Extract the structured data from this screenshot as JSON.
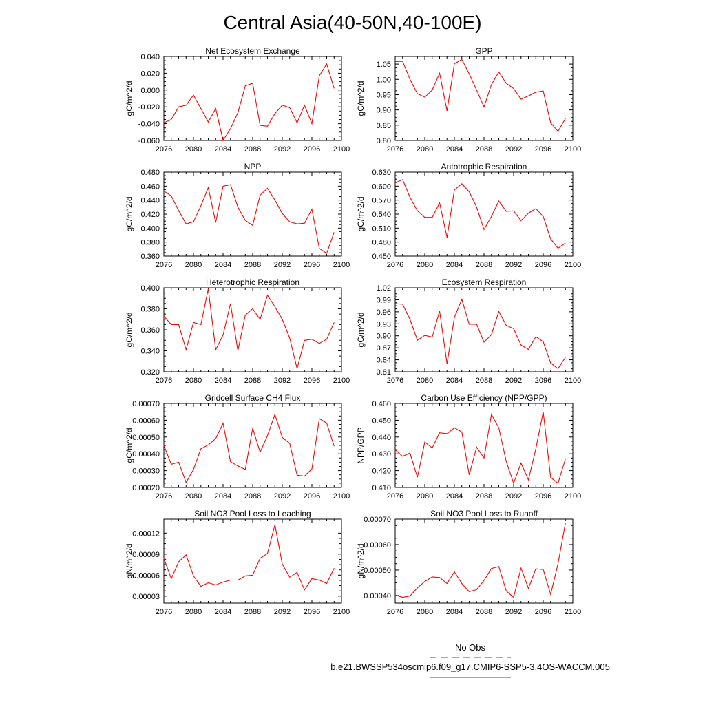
{
  "title": "Central Asia(40-50N,40-100E)",
  "legend": {
    "items": [
      {
        "label": "No Obs",
        "color": "#4444bb",
        "style": "dashed"
      },
      {
        "label": "b.e21.BWSSP534oscmip6.f09_g17.CMIP6-SSP5-3.4OS-WACCM.005",
        "color": "#ff0000",
        "style": "solid"
      }
    ]
  },
  "chart_data": [
    {
      "type": "line",
      "title": "Net Ecosystem Exchange",
      "ylabel": "gC/m^2/d",
      "xlim": [
        2076,
        2100
      ],
      "ylim": [
        -0.06,
        0.04
      ],
      "xticks": [
        2076,
        2080,
        2084,
        2088,
        2092,
        2096,
        2100
      ],
      "yticks": [
        -0.06,
        -0.04,
        -0.02,
        0.0,
        0.02,
        0.04
      ],
      "ytick_labels": [
        "-0.060",
        "-0.040",
        "-0.020",
        "0.000",
        "0.020",
        "0.040"
      ],
      "series": [
        {
          "name": "b.e21.BWSSP534oscmip6.f09_g17.CMIP6-SSP5-3.4OS-WACCM.005",
          "color": "#ff0000",
          "x": [
            2076,
            2077,
            2078,
            2079,
            2080,
            2081,
            2082,
            2083,
            2084,
            2085,
            2086,
            2087,
            2088,
            2089,
            2090,
            2091,
            2092,
            2093,
            2094,
            2095,
            2096,
            2097,
            2098,
            2099
          ],
          "values": [
            -0.039,
            -0.035,
            -0.02,
            -0.018,
            -0.006,
            -0.022,
            -0.038,
            -0.022,
            -0.06,
            -0.046,
            -0.027,
            0.005,
            0.008,
            -0.042,
            -0.043,
            -0.028,
            -0.018,
            -0.021,
            -0.039,
            -0.018,
            -0.04,
            0.017,
            0.031,
            0.002
          ]
        }
      ]
    },
    {
      "type": "line",
      "title": "GPP",
      "ylabel": "gC/m^2/d",
      "xlim": [
        2076,
        2100
      ],
      "ylim": [
        0.8,
        1.075
      ],
      "xticks": [
        2076,
        2080,
        2084,
        2088,
        2092,
        2096,
        2100
      ],
      "yticks": [
        0.8,
        0.85,
        0.9,
        0.95,
        1.0,
        1.05
      ],
      "ytick_labels": [
        "0.80",
        "0.85",
        "0.90",
        "0.95",
        "1.00",
        "1.05"
      ],
      "series": [
        {
          "name": "b.e21.BWSSP534oscmip6.f09_g17.CMIP6-SSP5-3.4OS-WACCM.005",
          "color": "#ff0000",
          "x": [
            2076,
            2077,
            2078,
            2079,
            2080,
            2081,
            2082,
            2083,
            2084,
            2085,
            2086,
            2087,
            2088,
            2089,
            2090,
            2091,
            2092,
            2093,
            2094,
            2095,
            2096,
            2097,
            2098,
            2099
          ],
          "values": [
            1.058,
            1.059,
            1.0,
            0.953,
            0.942,
            0.965,
            1.02,
            0.897,
            1.051,
            1.065,
            1.018,
            0.965,
            0.91,
            0.983,
            1.024,
            0.987,
            0.97,
            0.935,
            0.946,
            0.958,
            0.962,
            0.858,
            0.83,
            0.872
          ]
        }
      ]
    },
    {
      "type": "line",
      "title": "NPP",
      "ylabel": "gC/m^2/d",
      "xlim": [
        2076,
        2100
      ],
      "ylim": [
        0.36,
        0.48
      ],
      "xticks": [
        2076,
        2080,
        2084,
        2088,
        2092,
        2096,
        2100
      ],
      "yticks": [
        0.36,
        0.38,
        0.4,
        0.42,
        0.44,
        0.46,
        0.48
      ],
      "ytick_labels": [
        "0.360",
        "0.380",
        "0.400",
        "0.420",
        "0.440",
        "0.460",
        "0.480"
      ],
      "series": [
        {
          "name": "b.e21.BWSSP534oscmip6.f09_g17.CMIP6-SSP5-3.4OS-WACCM.005",
          "color": "#ff0000",
          "x": [
            2076,
            2077,
            2078,
            2079,
            2080,
            2081,
            2082,
            2083,
            2084,
            2085,
            2086,
            2087,
            2088,
            2089,
            2090,
            2091,
            2092,
            2093,
            2094,
            2095,
            2096,
            2097,
            2098,
            2099
          ],
          "values": [
            0.453,
            0.446,
            0.425,
            0.406,
            0.409,
            0.432,
            0.458,
            0.408,
            0.46,
            0.462,
            0.43,
            0.411,
            0.404,
            0.447,
            0.457,
            0.44,
            0.421,
            0.409,
            0.406,
            0.407,
            0.427,
            0.371,
            0.364,
            0.394
          ]
        }
      ]
    },
    {
      "type": "line",
      "title": "Autotrophic Respiration",
      "ylabel": "gC/m^2/d",
      "xlim": [
        2076,
        2100
      ],
      "ylim": [
        0.45,
        0.63
      ],
      "xticks": [
        2076,
        2080,
        2084,
        2088,
        2092,
        2096,
        2100
      ],
      "yticks": [
        0.45,
        0.48,
        0.51,
        0.54,
        0.57,
        0.6,
        0.63
      ],
      "ytick_labels": [
        "0.450",
        "0.480",
        "0.510",
        "0.540",
        "0.570",
        "0.600",
        "0.630"
      ],
      "series": [
        {
          "name": "b.e21.BWSSP534oscmip6.f09_g17.CMIP6-SSP5-3.4OS-WACCM.005",
          "color": "#ff0000",
          "x": [
            2076,
            2077,
            2078,
            2079,
            2080,
            2081,
            2082,
            2083,
            2084,
            2085,
            2086,
            2087,
            2088,
            2089,
            2090,
            2091,
            2092,
            2093,
            2094,
            2095,
            2096,
            2097,
            2098,
            2099
          ],
          "values": [
            0.607,
            0.614,
            0.576,
            0.547,
            0.533,
            0.533,
            0.564,
            0.49,
            0.592,
            0.605,
            0.588,
            0.555,
            0.507,
            0.535,
            0.568,
            0.546,
            0.547,
            0.526,
            0.542,
            0.552,
            0.535,
            0.487,
            0.467,
            0.478
          ]
        }
      ]
    },
    {
      "type": "line",
      "title": "Heterotrophic Respiration",
      "ylabel": "gC/m^2/d",
      "xlim": [
        2076,
        2100
      ],
      "ylim": [
        0.32,
        0.4
      ],
      "xticks": [
        2076,
        2080,
        2084,
        2088,
        2092,
        2096,
        2100
      ],
      "yticks": [
        0.32,
        0.34,
        0.36,
        0.38,
        0.4
      ],
      "ytick_labels": [
        "0.320",
        "0.340",
        "0.360",
        "0.380",
        "0.400"
      ],
      "series": [
        {
          "name": "b.e21.BWSSP534oscmip6.f09_g17.CMIP6-SSP5-3.4OS-WACCM.005",
          "color": "#ff0000",
          "x": [
            2076,
            2077,
            2078,
            2079,
            2080,
            2081,
            2082,
            2083,
            2084,
            2085,
            2086,
            2087,
            2088,
            2089,
            2090,
            2091,
            2092,
            2093,
            2094,
            2095,
            2096,
            2097,
            2098,
            2099
          ],
          "values": [
            0.373,
            0.365,
            0.365,
            0.341,
            0.367,
            0.365,
            0.399,
            0.341,
            0.355,
            0.385,
            0.34,
            0.374,
            0.38,
            0.37,
            0.393,
            0.382,
            0.37,
            0.352,
            0.323,
            0.35,
            0.351,
            0.347,
            0.351,
            0.367
          ]
        }
      ]
    },
    {
      "type": "line",
      "title": "Ecosystem Respiration",
      "ylabel": "gC/m^2/d",
      "xlim": [
        2076,
        2100
      ],
      "ylim": [
        0.81,
        1.02
      ],
      "xticks": [
        2076,
        2080,
        2084,
        2088,
        2092,
        2096,
        2100
      ],
      "yticks": [
        0.81,
        0.84,
        0.87,
        0.9,
        0.93,
        0.96,
        0.99,
        1.02
      ],
      "ytick_labels": [
        "0.81",
        "0.84",
        "0.87",
        "0.90",
        "0.93",
        "0.96",
        "0.99",
        "1.02"
      ],
      "series": [
        {
          "name": "b.e21.BWSSP534oscmip6.f09_g17.CMIP6-SSP5-3.4OS-WACCM.005",
          "color": "#ff0000",
          "x": [
            2076,
            2077,
            2078,
            2079,
            2080,
            2081,
            2082,
            2083,
            2084,
            2085,
            2086,
            2087,
            2088,
            2089,
            2090,
            2091,
            2092,
            2093,
            2094,
            2095,
            2096,
            2097,
            2098,
            2099
          ],
          "values": [
            0.98,
            0.979,
            0.941,
            0.889,
            0.901,
            0.897,
            0.962,
            0.83,
            0.946,
            0.991,
            0.929,
            0.929,
            0.884,
            0.903,
            0.961,
            0.926,
            0.918,
            0.877,
            0.866,
            0.898,
            0.885,
            0.832,
            0.818,
            0.846
          ]
        }
      ]
    },
    {
      "type": "line",
      "title": "Gridcell Surface CH4 Flux",
      "ylabel": "gC/m^2/d",
      "xlim": [
        2076,
        2100
      ],
      "ylim": [
        0.0002,
        0.0007
      ],
      "xticks": [
        2076,
        2080,
        2084,
        2088,
        2092,
        2096,
        2100
      ],
      "yticks": [
        0.0002,
        0.0003,
        0.0004,
        0.0005,
        0.0006,
        0.0007
      ],
      "ytick_labels": [
        "0.00020",
        "0.00030",
        "0.00040",
        "0.00050",
        "0.00060",
        "0.00070"
      ],
      "series": [
        {
          "name": "b.e21.BWSSP534oscmip6.f09_g17.CMIP6-SSP5-3.4OS-WACCM.005",
          "color": "#ff0000",
          "x": [
            2076,
            2077,
            2078,
            2079,
            2080,
            2081,
            2082,
            2083,
            2084,
            2085,
            2086,
            2087,
            2088,
            2089,
            2090,
            2091,
            2092,
            2093,
            2094,
            2095,
            2096,
            2097,
            2098,
            2099
          ],
          "values": [
            0.00045,
            0.000338,
            0.00035,
            0.00023,
            0.000307,
            0.00043,
            0.000453,
            0.00049,
            0.000582,
            0.000353,
            0.000328,
            0.000307,
            0.000552,
            0.00041,
            0.000508,
            0.000635,
            0.000498,
            0.000462,
            0.000273,
            0.000267,
            0.00031,
            0.00061,
            0.000583,
            0.000445
          ]
        }
      ]
    },
    {
      "type": "line",
      "title": "Carbon Use Efficiency (NPP/GPP)",
      "ylabel": "NPP/GPP",
      "xlim": [
        2076,
        2100
      ],
      "ylim": [
        0.41,
        0.46
      ],
      "xticks": [
        2076,
        2080,
        2084,
        2088,
        2092,
        2096,
        2100
      ],
      "yticks": [
        0.41,
        0.42,
        0.43,
        0.44,
        0.45,
        0.46
      ],
      "ytick_labels": [
        "0.410",
        "0.420",
        "0.430",
        "0.440",
        "0.450",
        "0.460"
      ],
      "series": [
        {
          "name": "b.e21.BWSSP534oscmip6.f09_g17.CMIP6-SSP5-3.4OS-WACCM.005",
          "color": "#ff0000",
          "x": [
            2076,
            2077,
            2078,
            2079,
            2080,
            2081,
            2082,
            2083,
            2084,
            2085,
            2086,
            2087,
            2088,
            2089,
            2090,
            2091,
            2092,
            2093,
            2094,
            2095,
            2096,
            2097,
            2098,
            2099
          ],
          "values": [
            0.4325,
            0.4285,
            0.4305,
            0.416,
            0.437,
            0.4335,
            0.4425,
            0.442,
            0.4455,
            0.443,
            0.4175,
            0.434,
            0.4275,
            0.4535,
            0.4455,
            0.4255,
            0.4125,
            0.4245,
            0.4145,
            0.433,
            0.455,
            0.416,
            0.4125,
            0.427
          ]
        }
      ]
    },
    {
      "type": "line",
      "title": "Soil NO3 Pool Loss to Leaching",
      "ylabel": "gN/m^2/d",
      "xlim": [
        2076,
        2100
      ],
      "ylim": [
        2e-05,
        0.00014
      ],
      "xticks": [
        2076,
        2080,
        2084,
        2088,
        2092,
        2096,
        2100
      ],
      "yticks": [
        3e-05,
        6e-05,
        9e-05,
        0.00012
      ],
      "ytick_labels": [
        "0.00003",
        "0.00006",
        "0.00009",
        "0.00012"
      ],
      "series": [
        {
          "name": "b.e21.BWSSP534oscmip6.f09_g17.CMIP6-SSP5-3.4OS-WACCM.005",
          "color": "#ff0000",
          "x": [
            2076,
            2077,
            2078,
            2079,
            2080,
            2081,
            2082,
            2083,
            2084,
            2085,
            2086,
            2087,
            2088,
            2089,
            2090,
            2091,
            2092,
            2093,
            2094,
            2095,
            2096,
            2097,
            2098,
            2099
          ],
          "values": [
            8.4e-05,
            5.5e-05,
            7.9e-05,
            8.9e-05,
            5.9e-05,
            4.4e-05,
            4.9e-05,
            4.6e-05,
            5e-05,
            5.3e-05,
            5.3e-05,
            5.9e-05,
            6e-05,
            8.4e-05,
            9.1e-05,
            0.000132,
            7.6e-05,
            5.7e-05,
            6.4e-05,
            3.9e-05,
            5.5e-05,
            5.3e-05,
            4.8e-05,
            7e-05
          ]
        }
      ]
    },
    {
      "type": "line",
      "title": "Soil NO3 Pool Loss to Runoff",
      "ylabel": "gN/m^2/d",
      "xlim": [
        2076,
        2100
      ],
      "ylim": [
        0.00037,
        0.0007
      ],
      "xticks": [
        2076,
        2080,
        2084,
        2088,
        2092,
        2096,
        2100
      ],
      "yticks": [
        0.0004,
        0.0005,
        0.0006,
        0.0007
      ],
      "ytick_labels": [
        "0.00040",
        "0.00050",
        "0.00060",
        "0.00070"
      ],
      "series": [
        {
          "name": "b.e21.BWSSP534oscmip6.f09_g17.CMIP6-SSP5-3.4OS-WACCM.005",
          "color": "#ff0000",
          "x": [
            2076,
            2077,
            2078,
            2079,
            2080,
            2081,
            2082,
            2083,
            2084,
            2085,
            2086,
            2087,
            2088,
            2089,
            2090,
            2091,
            2092,
            2093,
            2094,
            2095,
            2096,
            2097,
            2098,
            2099
          ],
          "values": [
            0.000402,
            0.000393,
            0.000398,
            0.00043,
            0.000455,
            0.000473,
            0.000471,
            0.000447,
            0.000493,
            0.000447,
            0.000415,
            0.000423,
            0.000459,
            0.000506,
            0.000514,
            0.000418,
            0.000393,
            0.000508,
            0.000428,
            0.000505,
            0.000502,
            0.000405,
            0.000525,
            0.000685
          ]
        }
      ]
    }
  ]
}
